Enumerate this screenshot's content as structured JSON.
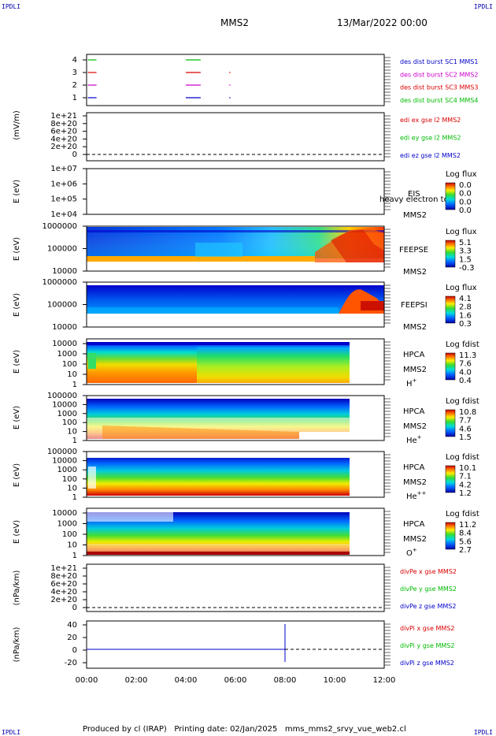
{
  "header": {
    "corner_tl": "IPDLI",
    "corner_tr": "IPDLI",
    "corner_bl": "IPDLI",
    "corner_br": "IPDLI",
    "title": "MMS2",
    "date": "13/Mar/2022 00:00"
  },
  "footer": {
    "text": "Produced by cl (IRAP)   Printing date: 02/Jan/2025   mms_mms2_srvy_vue_web2.cl"
  },
  "colors": {
    "red": "#dd0000",
    "green": "#00bb00",
    "blue": "#0000cc",
    "magenta": "#cc00cc"
  },
  "chart_data": {
    "type": "multi-panel time series / spectrogram",
    "x": {
      "range_hours": [
        0,
        12
      ],
      "ticks": [
        "00:00",
        "02:00",
        "04:00",
        "06:00",
        "08:00",
        "10:00",
        "12:00"
      ]
    },
    "panels": [
      {
        "id": "burst",
        "type": "timeline",
        "ylabel": "",
        "yticks": [
          "4",
          "3",
          "2",
          "1"
        ],
        "legend": [
          {
            "label": "des dist burst SC1 MMS1",
            "color": "#0000cc"
          },
          {
            "label": "des dist burst SC2 MMS2",
            "color": "#cc00cc"
          },
          {
            "label": "des dist burst SC3 MMS3",
            "color": "#dd0000"
          },
          {
            "label": "des dist burst SC4 MMS4",
            "color": "#00bb00"
          }
        ],
        "segments": [
          {
            "sc": 4,
            "color": "#00bb00",
            "hours": [
              [
                0.05,
                0.4
              ],
              [
                4.0,
                4.6
              ]
            ]
          },
          {
            "sc": 3,
            "color": "#dd0000",
            "hours": [
              [
                0.05,
                0.4
              ],
              [
                4.0,
                4.6
              ],
              [
                5.75,
                5.8
              ]
            ]
          },
          {
            "sc": 2,
            "color": "#cc00cc",
            "hours": [
              [
                0.05,
                0.4
              ],
              [
                4.0,
                4.6
              ],
              [
                5.75,
                5.8
              ]
            ]
          },
          {
            "sc": 1,
            "color": "#0000cc",
            "hours": [
              [
                0.05,
                0.4
              ],
              [
                4.0,
                4.6
              ],
              [
                5.75,
                5.8
              ]
            ]
          }
        ]
      },
      {
        "id": "edi",
        "type": "line",
        "ylabel": "(mV/m)",
        "yticks": [
          "1e+21",
          "8e+20",
          "6e+20",
          "4e+20",
          "2e+20",
          "0"
        ],
        "legend": [
          {
            "label": "edi ex gse l2 MMS2",
            "color": "#dd0000"
          },
          {
            "label": "edi ey gse l2 MMS2",
            "color": "#00bb00"
          },
          {
            "label": "edi ez gse l2 MMS2",
            "color": "#0000cc"
          }
        ],
        "zero_line": "dashed"
      },
      {
        "id": "eis",
        "type": "spectrogram",
        "ylabel": "E (eV)",
        "yticks": [
          "1e+07",
          "1e+06",
          "1e+05",
          "1e+04"
        ],
        "instrument": "EIS",
        "sc": "MMS2",
        "extra_label": "heavy electron to",
        "colorbar": {
          "title": "Log flux",
          "labels": [
            "0.0",
            "0.0",
            "0.0",
            "0.0"
          ]
        }
      },
      {
        "id": "feepse",
        "type": "spectrogram",
        "ylabel": "E (eV)",
        "yticks": [
          "1000000",
          "100000",
          "10000"
        ],
        "instrument": "FEEPSE",
        "sc": "MMS2",
        "colorbar": {
          "title": "Log flux",
          "labels": [
            "5.1",
            "3.3",
            "1.5",
            "-0.3"
          ]
        }
      },
      {
        "id": "feepsi",
        "type": "spectrogram",
        "ylabel": "E (eV)",
        "yticks": [
          "1000000",
          "100000",
          "10000"
        ],
        "instrument": "FEEPSI",
        "sc": "MMS2",
        "colorbar": {
          "title": "Log flux",
          "labels": [
            "4.1",
            "2.8",
            "1.6",
            "0.3"
          ]
        }
      },
      {
        "id": "hpca_h",
        "type": "spectrogram",
        "ylabel": "E (eV)",
        "yticks": [
          "10000",
          "1000",
          "100",
          "10",
          "1"
        ],
        "instrument": "HPCA",
        "sc": "MMS2",
        "species": "H",
        "charge": "+",
        "colorbar": {
          "title": "Log fdist",
          "labels": [
            "11.3",
            "7.6",
            "4.0",
            "0.4"
          ]
        }
      },
      {
        "id": "hpca_he",
        "type": "spectrogram",
        "ylabel": "E (eV)",
        "yticks": [
          "100000",
          "10000",
          "1000",
          "100",
          "10",
          "1"
        ],
        "instrument": "HPCA",
        "sc": "MMS2",
        "species": "He",
        "charge": "+",
        "colorbar": {
          "title": "Log fdist",
          "labels": [
            "10.8",
            "7.7",
            "4.6",
            "1.5"
          ]
        }
      },
      {
        "id": "hpca_hepp",
        "type": "spectrogram",
        "ylabel": "E (eV)",
        "yticks": [
          "100000",
          "10000",
          "1000",
          "100",
          "10",
          "1"
        ],
        "instrument": "HPCA",
        "sc": "MMS2",
        "species": "He",
        "charge": "++",
        "colorbar": {
          "title": "Log fdist",
          "labels": [
            "10.1",
            "7.1",
            "4.2",
            "1.2"
          ]
        }
      },
      {
        "id": "hpca_o",
        "type": "spectrogram",
        "ylabel": "E (eV)",
        "yticks": [
          "10000",
          "1000",
          "100",
          "10",
          "1"
        ],
        "instrument": "HPCA",
        "sc": "MMS2",
        "species": "O",
        "charge": "+",
        "colorbar": {
          "title": "Log fdist",
          "labels": [
            "11.2",
            "8.4",
            "5.6",
            "2.7"
          ]
        }
      },
      {
        "id": "divpe",
        "type": "line",
        "ylabel": "(nPa/km)",
        "yticks": [
          "1e+21",
          "8e+20",
          "6e+20",
          "4e+20",
          "2e+20",
          "0"
        ],
        "legend": [
          {
            "label": "divPe x gse MMS2",
            "color": "#dd0000"
          },
          {
            "label": "divPe y gse MMS2",
            "color": "#00bb00"
          },
          {
            "label": "divPe z gse MMS2",
            "color": "#0000cc"
          }
        ],
        "zero_line": "dashed"
      },
      {
        "id": "divpi",
        "type": "line",
        "ylabel": "(nPa/km)",
        "yticks": [
          "40",
          "20",
          "0",
          "-20"
        ],
        "ylim": [
          -30,
          45
        ],
        "legend": [
          {
            "label": "divPi x gse MMS2",
            "color": "#dd0000"
          },
          {
            "label": "divPi y gse MMS2",
            "color": "#00bb00"
          },
          {
            "label": "divPi z gse MMS2",
            "color": "#0000cc"
          }
        ],
        "series_z": {
          "hours": [
            0,
            8.0,
            8.0,
            8.0,
            8.0
          ],
          "values": [
            0,
            0,
            40,
            -20,
            0
          ]
        },
        "data_end_hour": 8.0
      }
    ]
  }
}
